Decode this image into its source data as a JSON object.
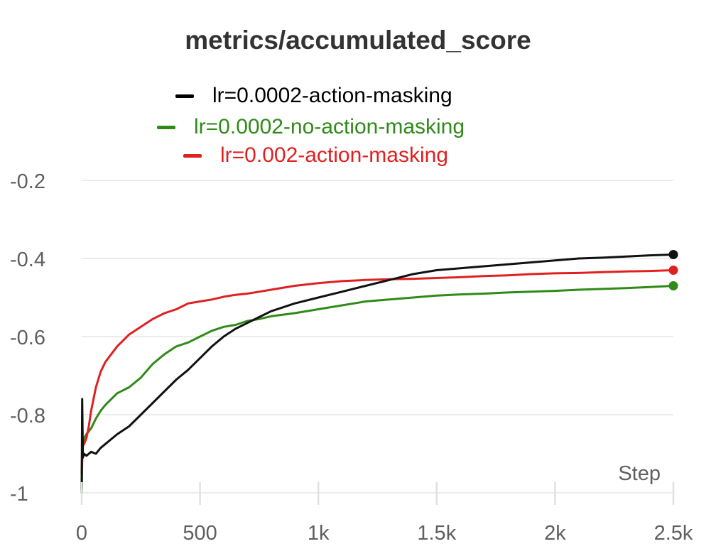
{
  "chart_data": {
    "type": "line",
    "title": "metrics/accumulated_score",
    "xlabel": "Step",
    "ylabel": "",
    "xlim": [
      0,
      2500
    ],
    "ylim": [
      -1,
      -0.2
    ],
    "x_ticks": [
      0,
      500,
      1000,
      1500,
      2000,
      2500
    ],
    "x_tick_labels": [
      "0",
      "500",
      "1k",
      "1.5k",
      "2k",
      "2.5k"
    ],
    "y_ticks": [
      -0.2,
      -0.4,
      -0.6,
      -0.8,
      -1
    ],
    "y_tick_labels": [
      "-0.2",
      "-0.4",
      "-0.6",
      "-0.8",
      "-1"
    ],
    "grid": true,
    "legend_position": "top-center",
    "series": [
      {
        "name": "lr=0.0002-action-masking",
        "color": "#111111",
        "x": [
          0,
          2,
          5,
          10,
          20,
          40,
          60,
          80,
          100,
          150,
          200,
          250,
          300,
          350,
          400,
          450,
          500,
          550,
          600,
          650,
          700,
          750,
          800,
          900,
          1000,
          1100,
          1200,
          1300,
          1400,
          1500,
          1600,
          1700,
          1800,
          1900,
          2000,
          2100,
          2200,
          2300,
          2400,
          2500
        ],
        "y": [
          -0.99,
          -0.76,
          -0.91,
          -0.9,
          -0.905,
          -0.895,
          -0.9,
          -0.885,
          -0.875,
          -0.85,
          -0.83,
          -0.8,
          -0.77,
          -0.74,
          -0.71,
          -0.685,
          -0.655,
          -0.625,
          -0.6,
          -0.58,
          -0.565,
          -0.55,
          -0.535,
          -0.515,
          -0.5,
          -0.485,
          -0.47,
          -0.455,
          -0.44,
          -0.43,
          -0.425,
          -0.42,
          -0.415,
          -0.41,
          -0.405,
          -0.4,
          -0.398,
          -0.395,
          -0.392,
          -0.39
        ]
      },
      {
        "name": "lr=0.0002-no-action-masking",
        "color": "#2f8a18",
        "x": [
          0,
          2,
          5,
          10,
          20,
          40,
          60,
          80,
          100,
          150,
          200,
          250,
          300,
          350,
          400,
          450,
          500,
          550,
          600,
          650,
          700,
          750,
          800,
          900,
          1000,
          1100,
          1200,
          1300,
          1400,
          1500,
          1600,
          1700,
          1800,
          1900,
          2000,
          2100,
          2200,
          2300,
          2400,
          2500
        ],
        "y": [
          -1.0,
          -0.92,
          -0.88,
          -0.86,
          -0.85,
          -0.835,
          -0.81,
          -0.79,
          -0.775,
          -0.745,
          -0.73,
          -0.705,
          -0.67,
          -0.645,
          -0.625,
          -0.615,
          -0.6,
          -0.585,
          -0.575,
          -0.57,
          -0.56,
          -0.555,
          -0.548,
          -0.54,
          -0.53,
          -0.52,
          -0.51,
          -0.505,
          -0.5,
          -0.495,
          -0.492,
          -0.49,
          -0.487,
          -0.485,
          -0.483,
          -0.48,
          -0.478,
          -0.476,
          -0.473,
          -0.47
        ]
      },
      {
        "name": "lr=0.002-action-masking",
        "color": "#e02020",
        "x": [
          0,
          2,
          5,
          10,
          20,
          30,
          40,
          60,
          80,
          100,
          150,
          200,
          250,
          300,
          350,
          400,
          450,
          500,
          550,
          600,
          650,
          700,
          750,
          800,
          900,
          1000,
          1100,
          1200,
          1300,
          1400,
          1500,
          1600,
          1700,
          1800,
          1900,
          2000,
          2100,
          2200,
          2300,
          2400,
          2500
        ],
        "y": [
          -0.95,
          -0.9,
          -0.88,
          -0.875,
          -0.86,
          -0.83,
          -0.79,
          -0.73,
          -0.69,
          -0.665,
          -0.625,
          -0.595,
          -0.575,
          -0.555,
          -0.54,
          -0.53,
          -0.515,
          -0.51,
          -0.505,
          -0.498,
          -0.493,
          -0.49,
          -0.485,
          -0.48,
          -0.47,
          -0.463,
          -0.458,
          -0.455,
          -0.453,
          -0.452,
          -0.45,
          -0.448,
          -0.445,
          -0.443,
          -0.44,
          -0.438,
          -0.437,
          -0.435,
          -0.433,
          -0.432,
          -0.43
        ]
      }
    ]
  }
}
